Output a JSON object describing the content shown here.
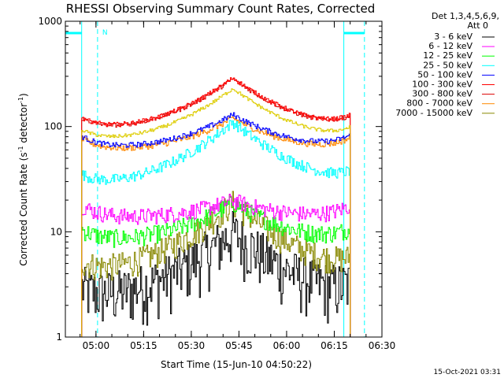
{
  "chart_data": {
    "type": "line",
    "title": "RHESSI Observing Summary Count Rates, Corrected",
    "xlabel": "Start Time (15-Jun-10 04:50:22)",
    "ylabel_main": "Corrected Count Rate (s",
    "ylabel_sup1": "-1",
    "ylabel_mid": " detector",
    "ylabel_sup2": "-1",
    "ylabel_end": ")",
    "y_scale": "log",
    "ylim": [
      1,
      1000
    ],
    "xlim": [
      "04:50:22",
      "06:30:00"
    ],
    "x_ticks": [
      "05:00",
      "05:15",
      "05:30",
      "05:45",
      "06:00",
      "06:15",
      "06:30"
    ],
    "y_ticks": [
      "1",
      "10",
      "100",
      "1000"
    ],
    "legend_header": "Det 1,3,4,5,6,9,",
    "legend_att": "Att 0",
    "legend_position": "right",
    "night_marker": "N",
    "timestamp": "15-Oct-2021 03:31",
    "series": [
      {
        "name": "3 - 6 keV",
        "color": "#000000",
        "base": 2,
        "peak": 10
      },
      {
        "name": "6 - 12 keV",
        "color": "#ff00ff",
        "base": 13,
        "peak": 20
      },
      {
        "name": "12 - 25 keV",
        "color": "#00ff00",
        "base": 7.5,
        "peak": 19
      },
      {
        "name": "25 - 50 keV",
        "color": "#00ffff",
        "base": 24,
        "peak": 110
      },
      {
        "name": "50 - 100 keV",
        "color": "#0000ff",
        "base": 58,
        "peak": 130
      },
      {
        "name": "100 - 300 keV",
        "color": "#ff0000",
        "base": 85,
        "peak": 290
      },
      {
        "name": "300 - 800 keV",
        "color": "#dd0000",
        "base": 84,
        "peak": 285
      },
      {
        "name": "800 - 7000 keV",
        "color": "#ff8800",
        "base": 55,
        "peak": 120
      },
      {
        "name": "7000 - 15000 keV",
        "color": "#888800",
        "base": 3.5,
        "peak": 19
      }
    ],
    "top_sub": "#ddcc00"
  }
}
